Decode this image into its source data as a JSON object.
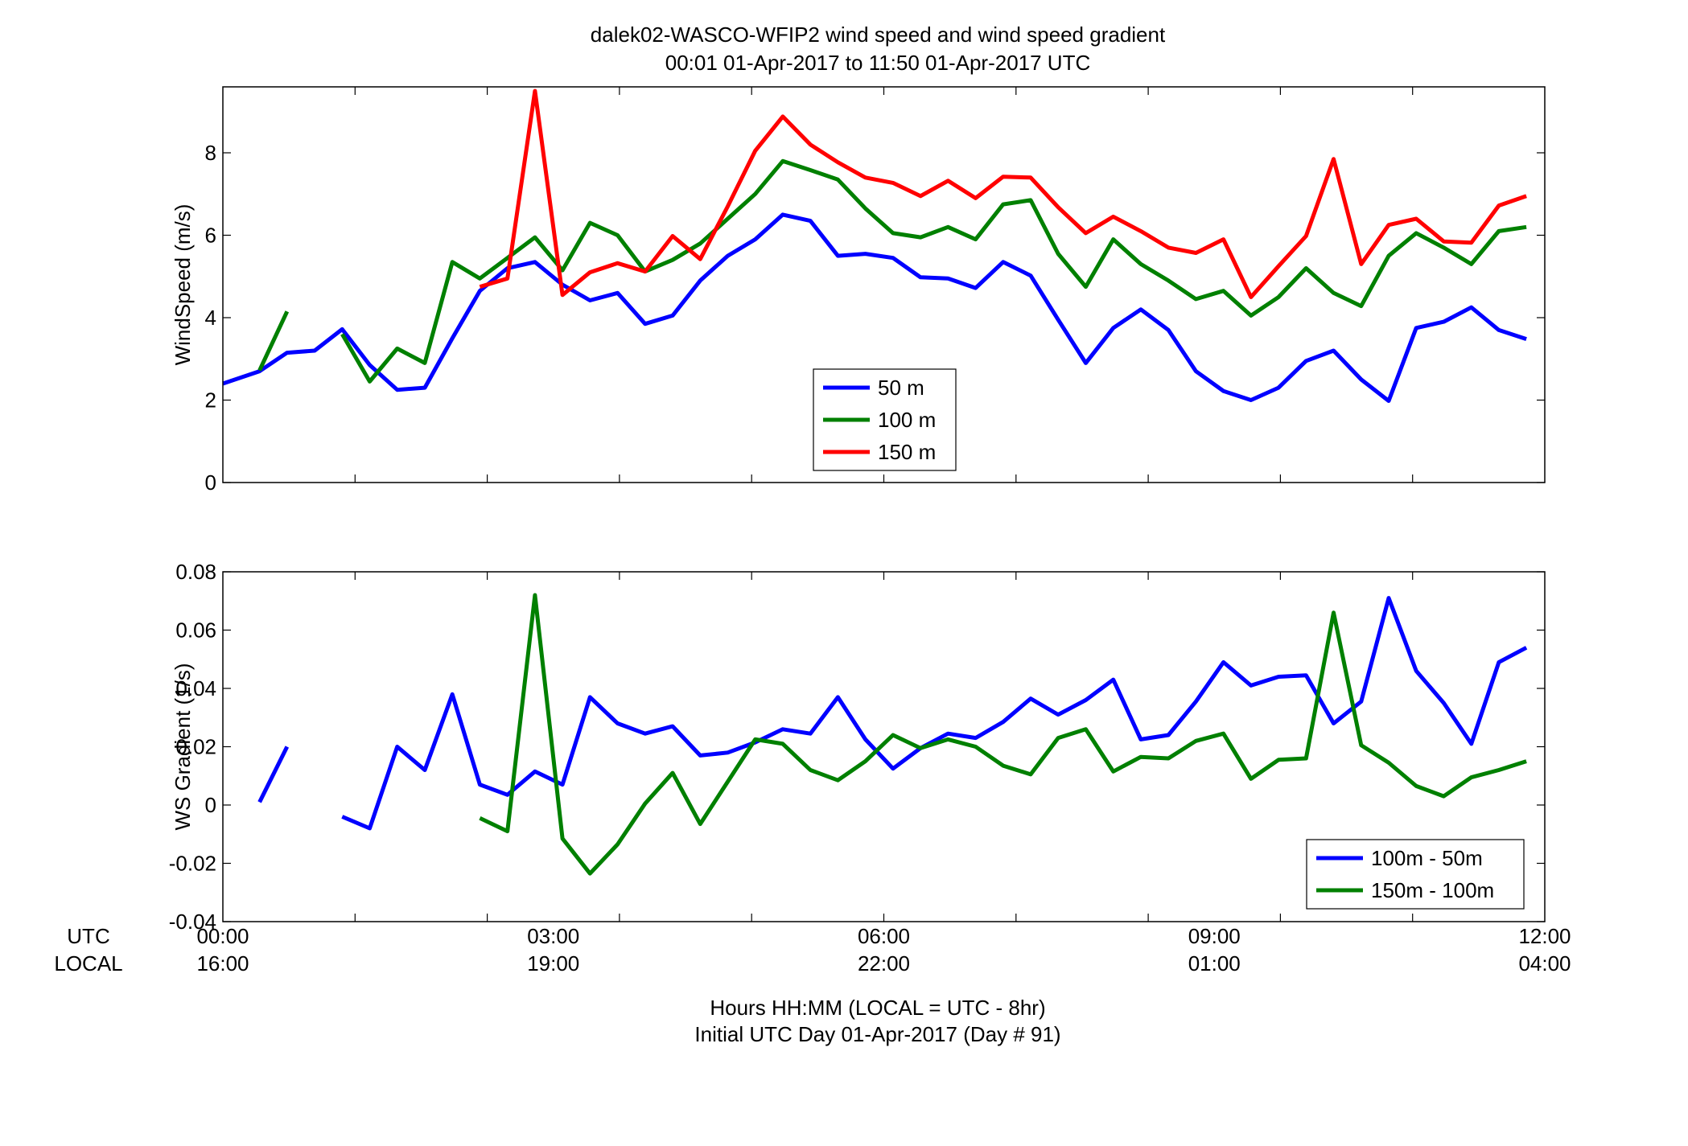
{
  "title": {
    "line1": "dalek02-WASCO-WFIP2  wind speed and wind speed gradient",
    "line2": "00:01 01-Apr-2017 to 11:50 01-Apr-2017  UTC"
  },
  "footer": {
    "line1": "Hours HH:MM  (LOCAL = UTC - 8hr)",
    "line2": "Initial UTC Day 01-Apr-2017 (Day # 91)"
  },
  "row_labels": {
    "utc": "UTC",
    "local": "LOCAL"
  },
  "x_axis": {
    "range_hours": [
      0,
      12
    ],
    "ticks": [
      0,
      3,
      6,
      9,
      12
    ],
    "minor_step_hours": 1.2,
    "utc_tick_labels": [
      "00:00",
      "03:00",
      "06:00",
      "09:00",
      "12:00"
    ],
    "local_tick_labels": [
      "16:00",
      "19:00",
      "22:00",
      "01:00",
      "04:00"
    ]
  },
  "colors": {
    "blue": "#0000ff",
    "green": "#008000",
    "red": "#ff0000"
  },
  "chart_data": [
    {
      "type": "line",
      "ylabel": "WindSpeed (m/s)",
      "ylim": [
        0,
        9.6
      ],
      "yticks": [
        0,
        2,
        4,
        6,
        8
      ],
      "ytick_labels": [
        "0",
        "2",
        "4",
        "6",
        "8"
      ],
      "grid": false,
      "legend_position": "lower-center",
      "x_hours": [
        0.0,
        0.333,
        0.583,
        0.833,
        1.083,
        1.333,
        1.583,
        1.833,
        2.083,
        2.333,
        2.583,
        2.833,
        3.083,
        3.333,
        3.583,
        3.833,
        4.083,
        4.333,
        4.583,
        4.833,
        5.083,
        5.333,
        5.583,
        5.833,
        6.083,
        6.333,
        6.583,
        6.833,
        7.083,
        7.333,
        7.583,
        7.833,
        8.083,
        8.333,
        8.583,
        8.833,
        9.083,
        9.333,
        9.583,
        9.833,
        10.083,
        10.333,
        10.583,
        10.833,
        11.083,
        11.333,
        11.583,
        11.833
      ],
      "series": [
        {
          "name": "50 m",
          "color": "#0000ff",
          "values": [
            2.4,
            2.7,
            3.15,
            3.2,
            3.72,
            2.85,
            2.25,
            2.3,
            3.5,
            4.65,
            5.2,
            5.35,
            4.8,
            4.42,
            4.6,
            3.85,
            4.05,
            4.9,
            5.5,
            5.9,
            6.5,
            6.35,
            5.5,
            5.55,
            5.45,
            4.98,
            4.95,
            4.72,
            5.35,
            5.02,
            3.95,
            2.9,
            3.75,
            4.2,
            3.7,
            2.7,
            2.22,
            2.0,
            2.3,
            2.95,
            3.2,
            2.5,
            1.98,
            3.75,
            3.9,
            4.25,
            3.7,
            3.48
          ]
        },
        {
          "name": "100 m",
          "color": "#008000",
          "values": [
            null,
            2.72,
            4.15,
            null,
            3.6,
            2.45,
            3.25,
            2.9,
            5.35,
            4.95,
            5.45,
            5.95,
            5.15,
            6.3,
            6.0,
            5.12,
            5.4,
            5.8,
            6.4,
            7.0,
            7.8,
            7.58,
            7.35,
            6.65,
            6.05,
            5.95,
            6.2,
            5.9,
            6.75,
            6.85,
            5.55,
            4.75,
            5.9,
            5.3,
            4.9,
            4.45,
            4.65,
            4.05,
            4.5,
            5.2,
            4.6,
            4.28,
            5.5,
            6.05,
            5.7,
            5.3,
            6.1,
            6.2
          ]
        },
        {
          "name": "150 m",
          "color": "#ff0000",
          "values": [
            null,
            null,
            null,
            null,
            null,
            null,
            null,
            null,
            null,
            4.75,
            4.95,
            9.5,
            4.55,
            5.1,
            5.32,
            5.12,
            5.98,
            5.42,
            6.7,
            8.05,
            8.88,
            8.2,
            7.77,
            7.4,
            7.27,
            6.95,
            7.32,
            6.9,
            7.42,
            7.4,
            6.68,
            6.05,
            6.45,
            6.1,
            5.7,
            5.57,
            5.9,
            4.5,
            5.25,
            5.98,
            7.85,
            5.3,
            6.25,
            6.4,
            5.85,
            5.82,
            6.72,
            6.95
          ]
        }
      ]
    },
    {
      "type": "line",
      "ylabel": "WS Gradient (1/s)",
      "ylim": [
        -0.04,
        0.08
      ],
      "yticks": [
        -0.04,
        -0.02,
        0,
        0.02,
        0.04,
        0.06,
        0.08
      ],
      "ytick_labels": [
        "-0.04",
        "-0.02",
        "0",
        "0.02",
        "0.04",
        "0.06",
        "0.08"
      ],
      "grid": false,
      "legend_position": "lower-right",
      "x_hours": [
        0.0,
        0.333,
        0.583,
        0.833,
        1.083,
        1.333,
        1.583,
        1.833,
        2.083,
        2.333,
        2.583,
        2.833,
        3.083,
        3.333,
        3.583,
        3.833,
        4.083,
        4.333,
        4.583,
        4.833,
        5.083,
        5.333,
        5.583,
        5.833,
        6.083,
        6.333,
        6.583,
        6.833,
        7.083,
        7.333,
        7.583,
        7.833,
        8.083,
        8.333,
        8.583,
        8.833,
        9.083,
        9.333,
        9.583,
        9.833,
        10.083,
        10.333,
        10.583,
        10.833,
        11.083,
        11.333,
        11.583,
        11.833
      ],
      "series": [
        {
          "name": "100m - 50m",
          "color": "#0000ff",
          "values": [
            null,
            0.001,
            0.02,
            null,
            -0.004,
            -0.008,
            0.02,
            0.012,
            0.038,
            0.007,
            0.0035,
            0.0115,
            0.007,
            0.037,
            0.028,
            0.0245,
            0.027,
            0.017,
            0.018,
            0.0215,
            0.026,
            0.0245,
            0.037,
            0.0225,
            0.0125,
            0.0195,
            0.0245,
            0.023,
            0.0285,
            0.0365,
            0.031,
            0.036,
            0.043,
            0.0225,
            0.024,
            0.0355,
            0.049,
            0.041,
            0.044,
            0.0445,
            0.028,
            0.0355,
            0.071,
            0.046,
            0.035,
            0.021,
            0.049,
            0.054
          ]
        },
        {
          "name": "150m - 100m",
          "color": "#008000",
          "values": [
            null,
            null,
            null,
            null,
            null,
            null,
            null,
            null,
            null,
            -0.0045,
            -0.009,
            0.072,
            -0.0115,
            -0.0235,
            -0.0135,
            0.0005,
            0.011,
            -0.0065,
            0.008,
            0.0225,
            0.021,
            0.012,
            0.0085,
            0.015,
            0.024,
            0.0195,
            0.0225,
            0.02,
            0.0135,
            0.0105,
            0.023,
            0.026,
            0.0115,
            0.0165,
            0.016,
            0.022,
            0.0245,
            0.009,
            0.0155,
            0.016,
            0.066,
            0.0205,
            0.0145,
            0.0065,
            0.003,
            0.0095,
            0.012,
            0.015
          ]
        }
      ]
    }
  ]
}
